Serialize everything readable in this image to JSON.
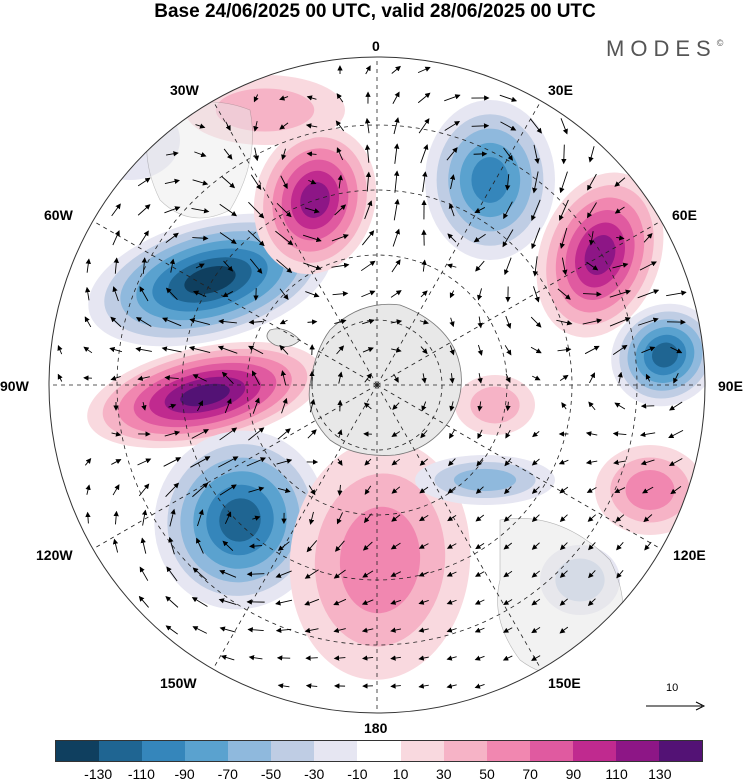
{
  "title": "Base 24/06/2025 00 UTC, valid 28/06/2025 00 UTC",
  "brand": "MODES",
  "brand_mark": "©",
  "longitude_labels": {
    "deg0": "0",
    "deg30e": "30E",
    "deg60e": "60E",
    "deg90e": "90E",
    "deg120e": "120E",
    "deg150e": "150E",
    "deg180": "180",
    "deg150w": "150W",
    "deg120w": "120W",
    "deg90w": "90W",
    "deg60w": "60W",
    "deg30w": "30W"
  },
  "vector_key": {
    "label": "10"
  },
  "colorbar": {
    "colors": [
      "#0f3f5f",
      "#1f6592",
      "#3586bb",
      "#5aa2cf",
      "#8fb9dd",
      "#bfcde4",
      "#e6e6f2",
      "#ffffff",
      "#f9d9df",
      "#f6b3c6",
      "#f187b0",
      "#e05aa0",
      "#c02a8f",
      "#8d1686",
      "#531275"
    ],
    "tick_labels": [
      "-130",
      "-110",
      "-90",
      "-70",
      "-50",
      "-30",
      "-10",
      "10",
      "30",
      "50",
      "70",
      "90",
      "110",
      "130"
    ]
  },
  "colors": {
    "land": "#e8e8e8",
    "coast": "#777777",
    "grid": "#222222"
  }
}
